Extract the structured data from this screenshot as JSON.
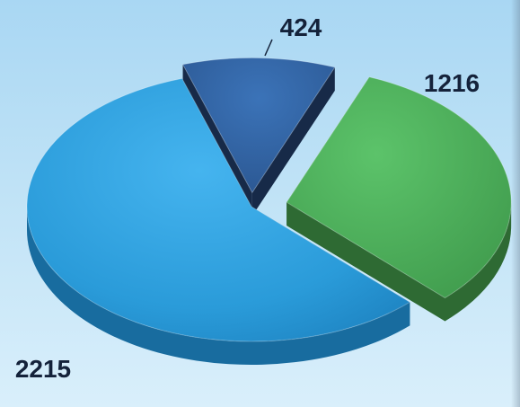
{
  "chart_data": {
    "type": "pie",
    "style": "3d-exploded",
    "slices": [
      {
        "label": "424",
        "value": 424,
        "color": "#2f5f9e"
      },
      {
        "label": "1216",
        "value": 1216,
        "color": "#4caa5a"
      },
      {
        "label": "2215",
        "value": 2215,
        "color": "#2a9bd9"
      }
    ],
    "legend": "none",
    "title": ""
  }
}
